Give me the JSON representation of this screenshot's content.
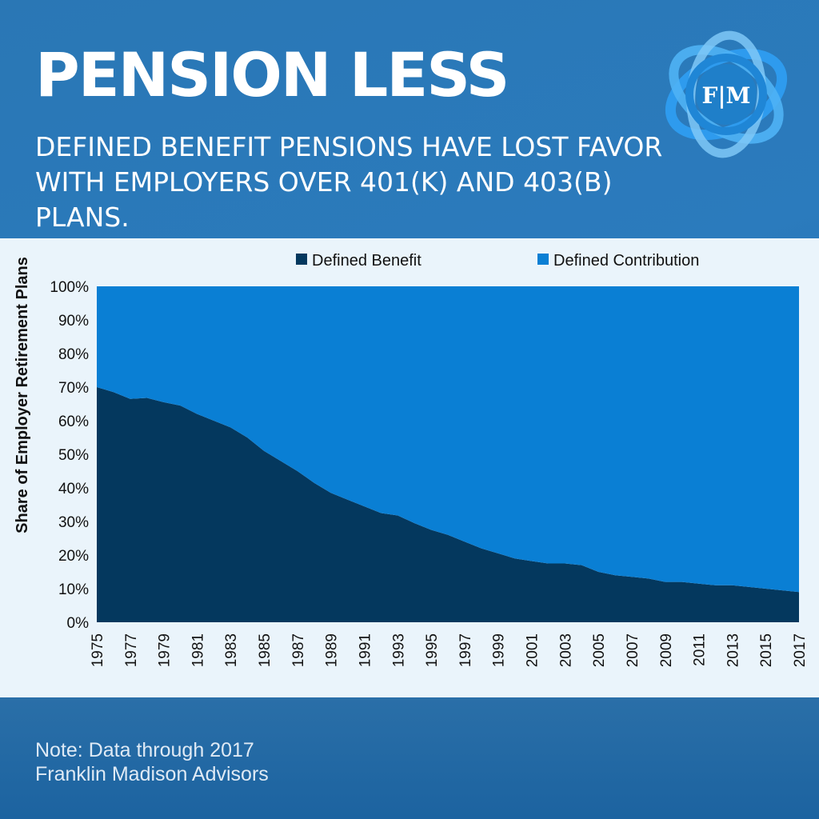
{
  "header": {
    "title": "PENSION LESS",
    "subtitle": "Defined benefit pensions have lost favor with employers over 401(k) and 403(b) plans.",
    "logo_text": "F|M"
  },
  "colors": {
    "defined_benefit": "#04385e",
    "defined_contribution": "#0a7fd4",
    "chart_background": "#eaf4fb",
    "page_background": "#2a77b5"
  },
  "chart_data": {
    "type": "area",
    "stacked": true,
    "ylabel": "Share of Employer Retirement Plans",
    "ylim": [
      0,
      100
    ],
    "yticks": [
      0,
      10,
      20,
      30,
      40,
      50,
      60,
      70,
      80,
      90,
      100
    ],
    "ytick_labels": [
      "0%",
      "10%",
      "20%",
      "30%",
      "40%",
      "50%",
      "60%",
      "70%",
      "80%",
      "90%",
      "100%"
    ],
    "x": [
      1975,
      1976,
      1977,
      1978,
      1979,
      1980,
      1981,
      1982,
      1983,
      1984,
      1985,
      1986,
      1987,
      1988,
      1989,
      1990,
      1991,
      1992,
      1993,
      1994,
      1995,
      1996,
      1997,
      1998,
      1999,
      2000,
      2001,
      2002,
      2003,
      2004,
      2005,
      2006,
      2007,
      2008,
      2009,
      2010,
      2011,
      2012,
      2013,
      2014,
      2015,
      2016,
      2017
    ],
    "xtick_labels": [
      "1975",
      "1977",
      "1979",
      "1981",
      "1983",
      "1985",
      "1987",
      "1989",
      "1991",
      "1993",
      "1995",
      "1997",
      "1999",
      "2001",
      "2003",
      "2005",
      "2007",
      "2009",
      "2011",
      "2013",
      "2015",
      "2017"
    ],
    "legend_position": "top",
    "series": [
      {
        "name": "Defined Benefit",
        "color": "#04385e",
        "values": [
          70,
          68.5,
          66.5,
          66.8,
          65.5,
          64.5,
          62,
          60,
          58,
          55,
          51,
          48,
          45,
          41.5,
          38.5,
          36.5,
          34.5,
          32.5,
          31.8,
          29.5,
          27.5,
          26,
          24,
          22,
          20.5,
          19,
          18.2,
          17.5,
          17.5,
          17,
          15,
          14,
          13.5,
          13,
          12,
          12,
          11.5,
          11,
          11,
          10.5,
          10,
          9.5,
          9
        ]
      },
      {
        "name": "Defined Contribution",
        "color": "#0a7fd4",
        "values": [
          30,
          31.5,
          33.5,
          33.2,
          34.5,
          35.5,
          38,
          40,
          42,
          45,
          49,
          52,
          55,
          58.5,
          61.5,
          63.5,
          65.5,
          67.5,
          68.2,
          70.5,
          72.5,
          74,
          76,
          78,
          79.5,
          81,
          81.8,
          82.5,
          82.5,
          83,
          85,
          86,
          86.5,
          87,
          88,
          88,
          88.5,
          89,
          89,
          89.5,
          90,
          90.5,
          91
        ]
      }
    ]
  },
  "footer": {
    "note": "Note:  Data through 2017",
    "source": "Franklin Madison Advisors"
  }
}
